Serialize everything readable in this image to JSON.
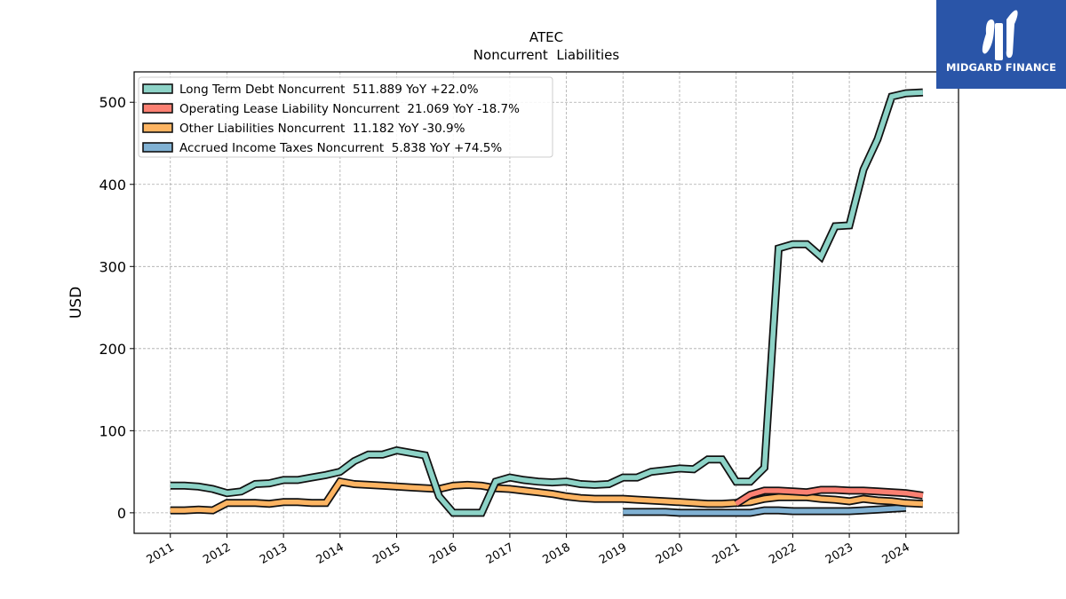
{
  "brand": {
    "name": "MIDGARD FINANCE",
    "bg_color": "#2a55a8"
  },
  "chart_data": {
    "type": "line",
    "title": "ATEC",
    "subtitle": "Noncurrent  Liabilities",
    "xlabel": "",
    "ylabel": "USD",
    "x_ticks": [
      "2011",
      "2012",
      "2013",
      "2014",
      "2015",
      "2016",
      "2017",
      "2018",
      "2019",
      "2020",
      "2021",
      "2022",
      "2023",
      "2024"
    ],
    "y_ticks": [
      0,
      100,
      200,
      300,
      400,
      500
    ],
    "xlim": [
      2010.36,
      2024.93
    ],
    "ylim": [
      -25,
      537
    ],
    "grid": true,
    "legend_position": "top-left",
    "series": [
      {
        "name": "Long Term Debt Noncurrent",
        "legend_label": "Long Term Debt Noncurrent  511.889 YoY +22.0%",
        "color": "#8dd3c7",
        "x": [
          2011.0,
          2011.25,
          2011.5,
          2011.75,
          2012.0,
          2012.25,
          2012.5,
          2012.75,
          2013.0,
          2013.25,
          2013.5,
          2013.75,
          2014.0,
          2014.25,
          2014.5,
          2014.75,
          2015.0,
          2015.25,
          2015.5,
          2015.75,
          2016.0,
          2016.25,
          2016.5,
          2016.75,
          2017.0,
          2017.25,
          2017.5,
          2017.75,
          2018.0,
          2018.25,
          2018.5,
          2018.75,
          2019.0,
          2019.25,
          2019.5,
          2019.75,
          2020.0,
          2020.25,
          2020.5,
          2020.75,
          2021.0,
          2021.25,
          2021.5,
          2021.75,
          2022.0,
          2022.25,
          2022.5,
          2022.75,
          2023.0,
          2023.25,
          2023.5,
          2023.75,
          2024.0,
          2024.3
        ],
        "y": [
          33,
          33,
          32,
          29,
          24,
          26,
          35,
          36,
          40,
          40,
          43,
          46,
          50,
          63,
          71,
          71,
          76,
          73,
          70,
          20,
          0,
          0,
          0,
          38,
          43,
          40,
          38,
          37,
          38,
          35,
          34,
          35,
          43,
          43,
          50,
          52,
          54,
          53,
          65,
          65,
          38,
          38,
          55,
          322,
          327,
          327,
          312,
          349,
          350,
          418,
          455,
          507,
          511,
          512
        ]
      },
      {
        "name": "Operating Lease Liability Noncurrent",
        "legend_label": "Operating Lease Liability Noncurrent  21.069 YoY -18.7%",
        "color": "#fb8072",
        "x": [
          2021.0,
          2021.25,
          2021.5,
          2021.75,
          2022.0,
          2022.25,
          2022.5,
          2022.75,
          2023.0,
          2023.25,
          2023.5,
          2023.75,
          2024.0,
          2024.3
        ],
        "y": [
          11,
          22,
          27,
          27,
          26,
          25,
          28,
          28,
          27,
          27,
          26,
          25,
          24,
          21
        ]
      },
      {
        "name": "Other Liabilities Noncurrent",
        "legend_label": "Other Liabilities Noncurrent  11.182 YoY -30.9%",
        "color": "#fdb462",
        "x": [
          2011.0,
          2011.25,
          2011.5,
          2011.75,
          2012.0,
          2012.25,
          2012.5,
          2012.75,
          2013.0,
          2013.25,
          2013.5,
          2013.75,
          2014.0,
          2014.25,
          2014.5,
          2014.75,
          2015.0,
          2015.25,
          2015.5,
          2015.75,
          2016.0,
          2016.25,
          2016.5,
          2016.75,
          2017.0,
          2017.25,
          2017.5,
          2017.75,
          2018.0,
          2018.25,
          2018.5,
          2018.75,
          2019.0,
          2019.25,
          2019.5,
          2019.75,
          2020.0,
          2020.25,
          2020.5,
          2020.75,
          2021.0,
          2021.25,
          2021.5,
          2021.75,
          2022.0,
          2022.25,
          2022.5,
          2022.75,
          2023.0,
          2023.25,
          2023.5,
          2023.75,
          2024.0,
          2024.3
        ],
        "y": [
          3,
          3,
          4,
          3,
          12,
          12,
          12,
          11,
          13,
          13,
          12,
          12,
          38,
          35,
          34,
          33,
          32,
          31,
          30,
          29,
          33,
          34,
          33,
          30,
          29,
          27,
          25,
          23,
          20,
          18,
          17,
          17,
          17,
          16,
          15,
          14,
          13,
          12,
          11,
          11,
          12,
          13,
          17,
          19,
          19,
          19,
          17,
          16,
          14,
          17,
          15,
          14,
          12,
          11
        ]
      },
      {
        "name": "Accrued Income Taxes Noncurrent",
        "legend_label": "Accrued Income Taxes Noncurrent  5.838 YoY +74.5%",
        "color": "#80b1d3",
        "x": [
          2019.0,
          2019.25,
          2019.5,
          2019.75,
          2020.0,
          2020.25,
          2020.5,
          2020.75,
          2021.0,
          2021.25,
          2021.5,
          2021.75,
          2022.0,
          2022.25,
          2022.5,
          2022.75,
          2023.0,
          2023.25,
          2023.5,
          2023.75,
          2024.0
        ],
        "y": [
          1,
          1,
          1,
          1,
          0,
          0,
          0,
          0,
          0,
          0,
          3,
          3,
          2,
          2,
          2,
          2,
          2,
          3,
          4,
          5,
          6
        ]
      }
    ]
  }
}
